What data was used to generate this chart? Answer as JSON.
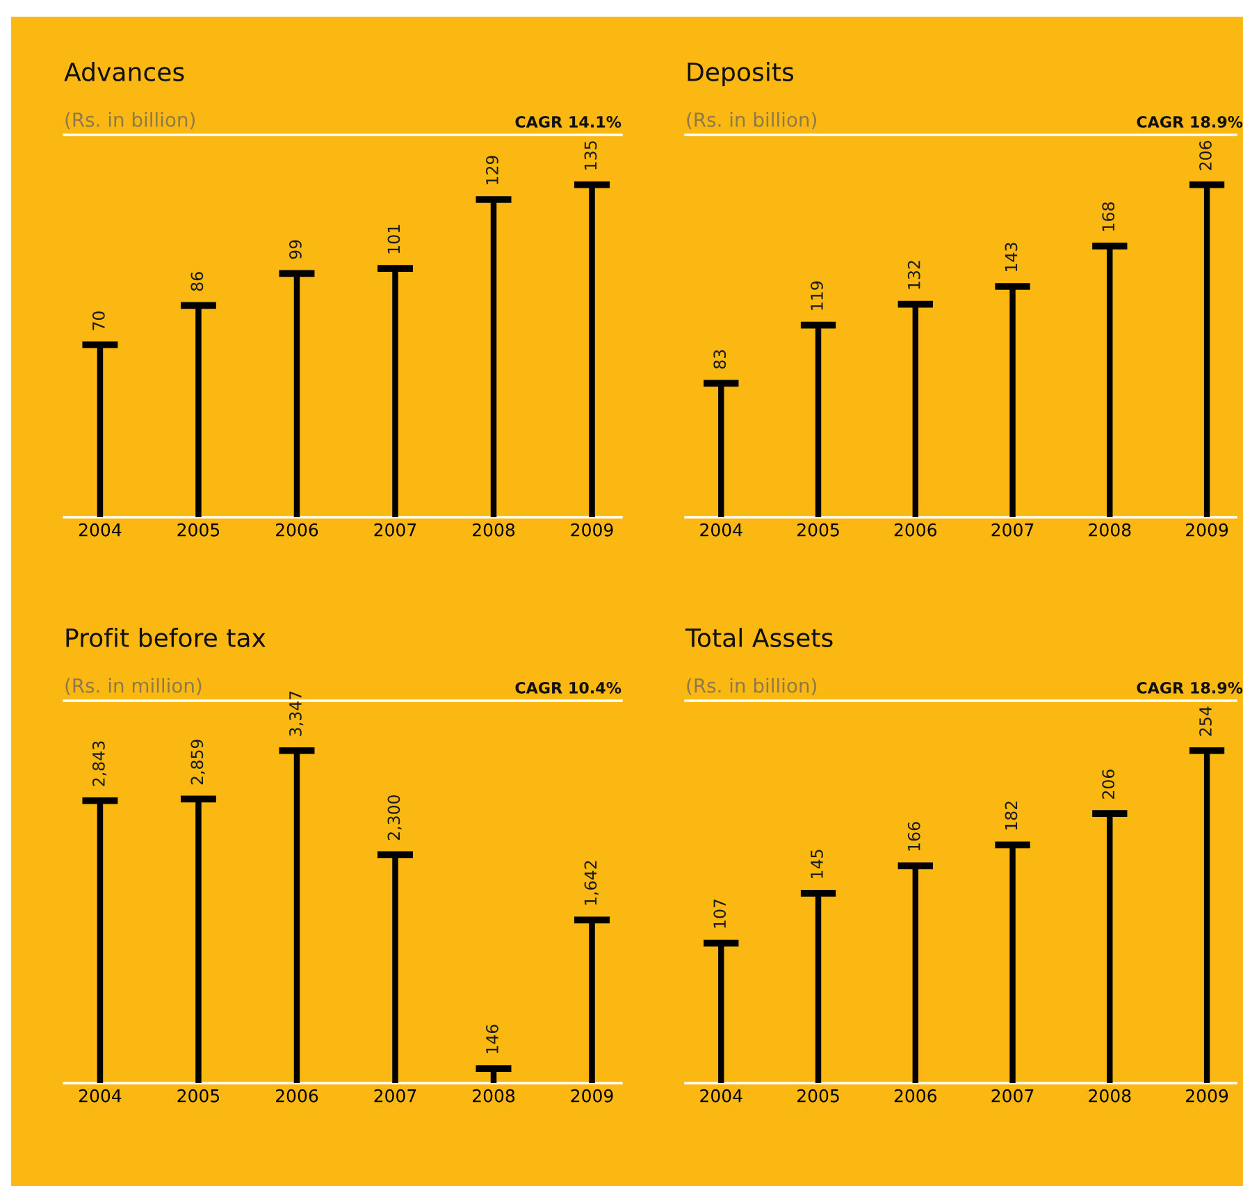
{
  "chart_data": [
    {
      "type": "bar",
      "title": "Advances",
      "subtitle": "(Rs. in billion)",
      "annotations": [
        "CAGR 14.1%"
      ],
      "categories": [
        "2004",
        "2005",
        "2006",
        "2007",
        "2008",
        "2009"
      ],
      "values": [
        70,
        86,
        99,
        101,
        129,
        135
      ],
      "value_labels": [
        "70",
        "86",
        "99",
        "101",
        "129",
        "135"
      ],
      "color": "#000000",
      "grid": false,
      "legend": false
    },
    {
      "type": "bar",
      "title": "Deposits",
      "subtitle": "(Rs. in billion)",
      "annotations": [
        "CAGR 18.9%"
      ],
      "categories": [
        "2004",
        "2005",
        "2006",
        "2007",
        "2008",
        "2009"
      ],
      "values": [
        83,
        119,
        132,
        143,
        168,
        206
      ],
      "value_labels": [
        "83",
        "119",
        "132",
        "143",
        "168",
        "206"
      ],
      "color": "#000000",
      "grid": false,
      "legend": false
    },
    {
      "type": "bar",
      "title": "Profit before tax",
      "subtitle": "(Rs. in million)",
      "annotations": [
        "CAGR 10.4%"
      ],
      "categories": [
        "2004",
        "2005",
        "2006",
        "2007",
        "2008",
        "2009"
      ],
      "values": [
        2843,
        2859,
        3347,
        2300,
        146,
        1642
      ],
      "value_labels": [
        "2,843",
        "2,859",
        "3,347",
        "2,300",
        "146",
        "1,642"
      ],
      "color": "#000000",
      "grid": false,
      "legend": false
    },
    {
      "type": "bar",
      "title": "Total Assets",
      "subtitle": "(Rs. in billion)",
      "annotations": [
        "CAGR 18.9%"
      ],
      "categories": [
        "2004",
        "2005",
        "2006",
        "2007",
        "2008",
        "2009"
      ],
      "values": [
        107,
        145,
        166,
        182,
        206,
        254
      ],
      "value_labels": [
        "107",
        "145",
        "166",
        "182",
        "206",
        "254"
      ],
      "color": "#000000",
      "grid": false,
      "legend": false
    }
  ]
}
